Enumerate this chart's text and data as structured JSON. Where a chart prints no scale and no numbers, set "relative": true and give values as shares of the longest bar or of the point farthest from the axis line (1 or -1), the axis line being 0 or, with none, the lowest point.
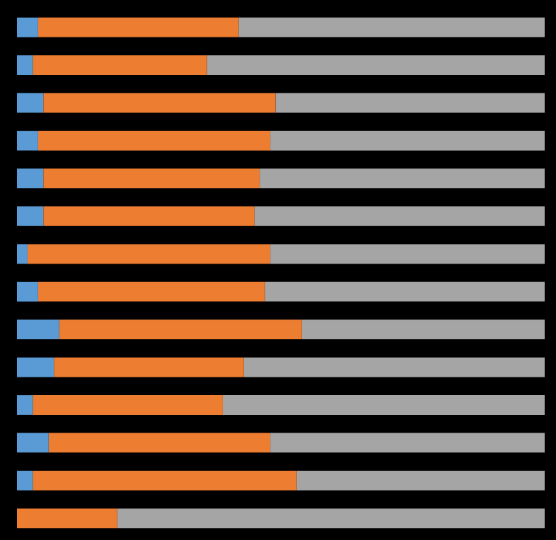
{
  "chart_data": {
    "type": "bar",
    "orientation": "horizontal",
    "stacked": true,
    "relative": true,
    "legend": false,
    "tick_labels": false,
    "categories": [
      null,
      null,
      null,
      null,
      null,
      null,
      null,
      null,
      null,
      null,
      null,
      null,
      null,
      null
    ],
    "series": [
      {
        "color": "#5b9bd5",
        "values": [
          0.04,
          0.03,
          0.05,
          0.04,
          0.05,
          0.05,
          0.02,
          0.04,
          0.08,
          0.07,
          0.03,
          0.06,
          0.03,
          0
        ]
      },
      {
        "color": "#ed7d31",
        "values": [
          0.38,
          0.33,
          0.44,
          0.44,
          0.41,
          0.4,
          0.46,
          0.43,
          0.46,
          0.36,
          0.36,
          0.42,
          0.5,
          0.19
        ]
      },
      {
        "color": "#a5a5a5",
        "values": [
          0.58,
          0.64,
          0.51,
          0.52,
          0.54,
          0.55,
          0.52,
          0.53,
          0.46,
          0.57,
          0.61,
          0.52,
          0.47,
          0.81
        ]
      }
    ]
  }
}
